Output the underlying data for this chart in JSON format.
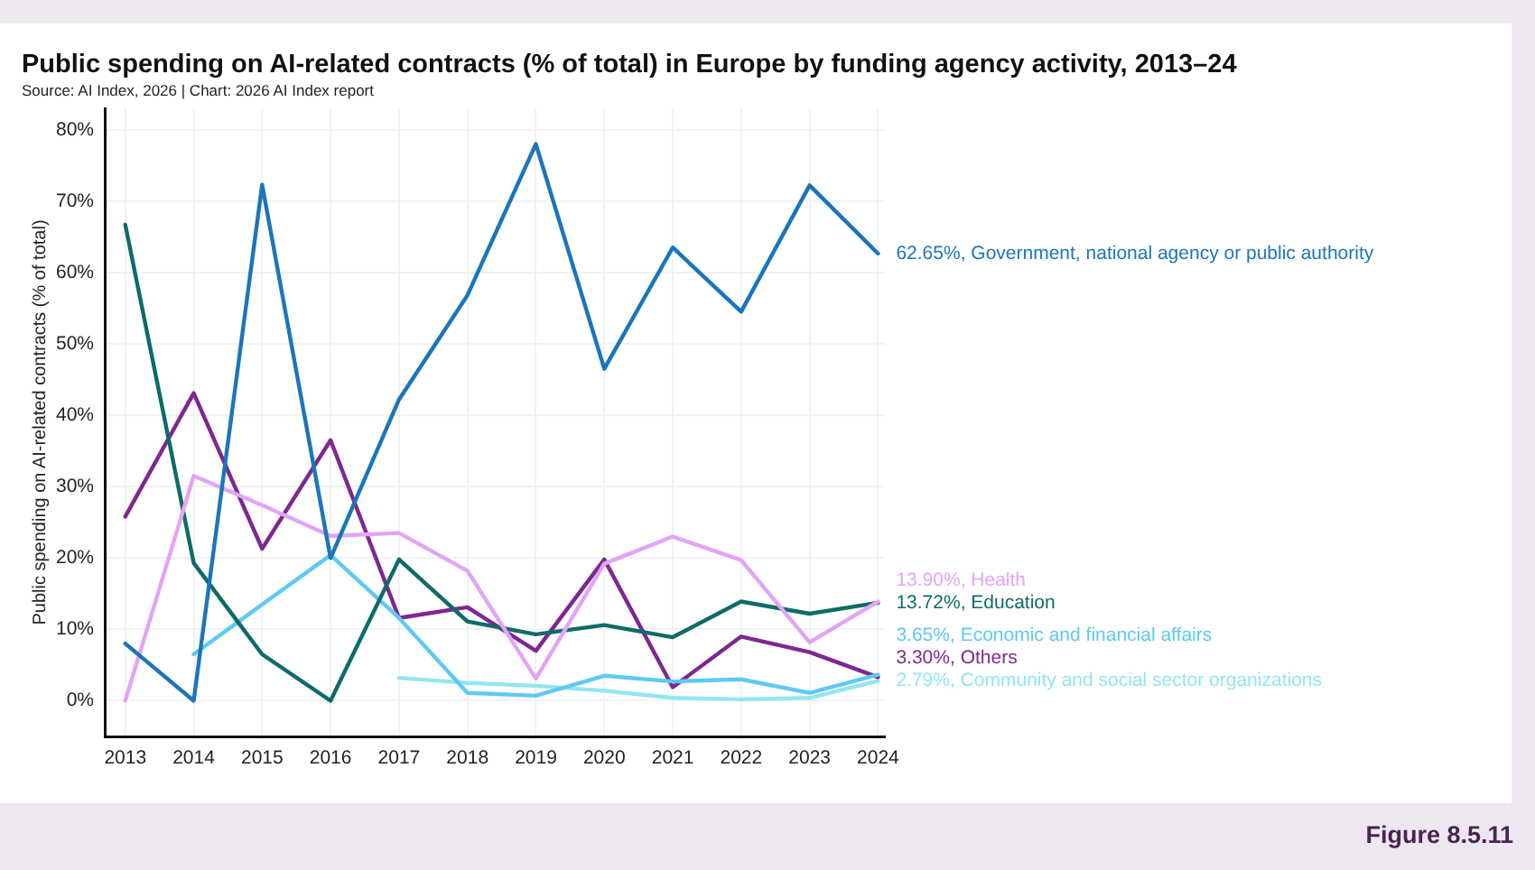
{
  "chart_data": {
    "type": "line",
    "title": "Public spending on AI-related contracts (% of total) in Europe by funding agency activity, 2013–24",
    "ylabel": "Public spending on AI-related contracts (% of total)",
    "annotations": [
      "Source: AI Index, 2026 | Chart: 2026 AI Index report",
      "Figure 8.5.11"
    ],
    "x": [
      2013,
      2014,
      2015,
      2016,
      2017,
      2018,
      2019,
      2020,
      2021,
      2022,
      2023,
      2024
    ],
    "xlim": [
      2012.7,
      2024.1
    ],
    "xticks": [
      2013,
      2014,
      2015,
      2016,
      2017,
      2018,
      2019,
      2020,
      2021,
      2022,
      2023,
      2024
    ],
    "ylim": [
      -5,
      83
    ],
    "yticks": [
      {
        "value": 0,
        "label": "0%"
      },
      {
        "value": 10,
        "label": "10%"
      },
      {
        "value": 20,
        "label": "20%"
      },
      {
        "value": 30,
        "label": "30%"
      },
      {
        "value": 40,
        "label": "40%"
      },
      {
        "value": 50,
        "label": "50%"
      },
      {
        "value": 60,
        "label": "60%"
      },
      {
        "value": 70,
        "label": "70%"
      },
      {
        "value": 80,
        "label": "80%"
      }
    ],
    "grid": true,
    "marker": "none",
    "line_style": "solid",
    "series": [
      {
        "name": "Government, national agency or public authority",
        "color": "#1b75bb",
        "values": [
          8,
          0,
          72.3,
          20,
          42.2,
          56.8,
          78,
          46.5,
          63.5,
          54.5,
          72.2,
          62.65
        ],
        "value_labels": [
          null,
          null,
          null,
          null,
          null,
          null,
          null,
          null,
          null,
          null,
          null,
          "62.65%,"
        ]
      },
      {
        "name": "Health",
        "color": "#e2a4f7",
        "values": [
          0,
          31.5,
          27.4,
          23.1,
          23.5,
          18.2,
          3.1,
          19.2,
          23,
          19.7,
          8.2,
          13.9
        ],
        "value_labels": [
          null,
          null,
          null,
          null,
          null,
          null,
          null,
          null,
          null,
          null,
          null,
          "13.90%,"
        ]
      },
      {
        "name": "Education",
        "color": "#0e6b67",
        "values": [
          66.7,
          19.3,
          6.5,
          0,
          19.8,
          11.1,
          9.3,
          10.6,
          8.9,
          13.9,
          12.2,
          13.72
        ],
        "value_labels": [
          null,
          null,
          null,
          null,
          null,
          null,
          null,
          null,
          null,
          null,
          null,
          "13.72%,"
        ]
      },
      {
        "name": "Economic and financial affairs",
        "color": "#5fc9f3",
        "values": [
          null,
          6.5,
          13.5,
          20.4,
          11.6,
          1.1,
          0.7,
          3.5,
          2.7,
          3,
          1.1,
          3.65
        ],
        "value_labels": [
          null,
          null,
          null,
          null,
          null,
          null,
          null,
          null,
          null,
          null,
          null,
          "3.65%,"
        ]
      },
      {
        "name": "Others",
        "color": "#7e2791",
        "values": [
          25.8,
          43.1,
          21.3,
          36.5,
          11.6,
          13.1,
          7,
          19.8,
          1.9,
          9,
          6.8,
          3.3
        ],
        "value_labels": [
          null,
          null,
          null,
          null,
          null,
          null,
          null,
          null,
          null,
          null,
          null,
          "3.30%,"
        ]
      },
      {
        "name": "Community and social sector organizations",
        "color": "#92e6f0",
        "values": [
          null,
          null,
          null,
          null,
          3.2,
          2.5,
          2.1,
          1.4,
          0.4,
          0.2,
          0.4,
          2.79
        ],
        "value_labels": [
          null,
          null,
          null,
          null,
          null,
          null,
          null,
          null,
          null,
          null,
          null,
          "2.79%,"
        ]
      }
    ]
  }
}
